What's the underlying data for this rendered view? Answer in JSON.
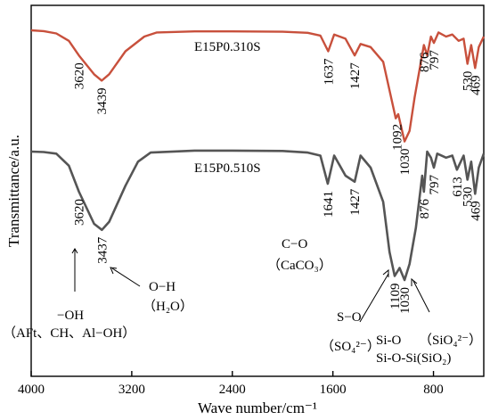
{
  "chart_data": {
    "type": "line",
    "xlabel": "Wave number/cm⁻¹",
    "ylabel": "Transmittance/a.u.",
    "xlim": [
      4000,
      400
    ],
    "x_reversed": true,
    "x_ticks": [
      4000,
      3200,
      2400,
      1600,
      800
    ],
    "grid": false,
    "series": [
      {
        "name": "E15P0.310S",
        "color": "#c8503c",
        "points": [
          [
            4000,
            100
          ],
          [
            3900,
            99.6
          ],
          [
            3800,
            98.5
          ],
          [
            3700,
            95
          ],
          [
            3620,
            88
          ],
          [
            3500,
            79
          ],
          [
            3439,
            76
          ],
          [
            3380,
            79
          ],
          [
            3250,
            90
          ],
          [
            3100,
            97
          ],
          [
            3000,
            99
          ],
          [
            2700,
            99.5
          ],
          [
            2400,
            99.5
          ],
          [
            2000,
            99.3
          ],
          [
            1800,
            98.8
          ],
          [
            1700,
            97.5
          ],
          [
            1637,
            90
          ],
          [
            1590,
            98
          ],
          [
            1500,
            96
          ],
          [
            1427,
            88
          ],
          [
            1380,
            93.5
          ],
          [
            1300,
            92
          ],
          [
            1200,
            85
          ],
          [
            1100,
            58
          ],
          [
            1080,
            60
          ],
          [
            1030,
            47
          ],
          [
            990,
            52
          ],
          [
            950,
            68
          ],
          [
            876,
            93
          ],
          [
            850,
            88
          ],
          [
            820,
            97
          ],
          [
            797,
            94
          ],
          [
            760,
            99
          ],
          [
            700,
            97
          ],
          [
            650,
            98
          ],
          [
            600,
            95
          ],
          [
            560,
            96
          ],
          [
            530,
            84
          ],
          [
            500,
            93
          ],
          [
            469,
            82
          ],
          [
            440,
            92
          ],
          [
            400,
            97
          ]
        ]
      },
      {
        "name": "E15P0.510S",
        "color": "#555555",
        "points": [
          [
            4000,
            100
          ],
          [
            3900,
            99.8
          ],
          [
            3800,
            99
          ],
          [
            3700,
            93
          ],
          [
            3620,
            80
          ],
          [
            3500,
            64
          ],
          [
            3437,
            61
          ],
          [
            3380,
            65
          ],
          [
            3250,
            83
          ],
          [
            3150,
            95
          ],
          [
            3050,
            99.5
          ],
          [
            2700,
            100.5
          ],
          [
            2400,
            100.5
          ],
          [
            2000,
            100.3
          ],
          [
            1800,
            99.5
          ],
          [
            1700,
            98
          ],
          [
            1641,
            84
          ],
          [
            1590,
            98
          ],
          [
            1500,
            88
          ],
          [
            1427,
            85
          ],
          [
            1380,
            98
          ],
          [
            1300,
            92
          ],
          [
            1200,
            75
          ],
          [
            1150,
            50
          ],
          [
            1109,
            38
          ],
          [
            1070,
            42
          ],
          [
            1030,
            36
          ],
          [
            990,
            44
          ],
          [
            940,
            62
          ],
          [
            890,
            88
          ],
          [
            876,
            80
          ],
          [
            850,
            100
          ],
          [
            820,
            97
          ],
          [
            797,
            92
          ],
          [
            770,
            99
          ],
          [
            700,
            97
          ],
          [
            650,
            98
          ],
          [
            613,
            91
          ],
          [
            560,
            98
          ],
          [
            530,
            86
          ],
          [
            500,
            95
          ],
          [
            469,
            79
          ],
          [
            440,
            92
          ],
          [
            400,
            99
          ]
        ]
      }
    ],
    "peak_labels": [
      {
        "text": "3620",
        "series": 0,
        "x": 3620
      },
      {
        "text": "3439",
        "series": 0,
        "x": 3439
      },
      {
        "text": "1637",
        "series": 0,
        "x": 1637
      },
      {
        "text": "1427",
        "series": 0,
        "x": 1427
      },
      {
        "text": "1092",
        "series": 0,
        "x": 1092
      },
      {
        "text": "1030",
        "series": 0,
        "x": 1030
      },
      {
        "text": "876",
        "series": 0,
        "x": 876
      },
      {
        "text": "797",
        "series": 0,
        "x": 797
      },
      {
        "text": "530",
        "series": 0,
        "x": 530
      },
      {
        "text": "469",
        "series": 0,
        "x": 469
      },
      {
        "text": "3620",
        "series": 1,
        "x": 3620
      },
      {
        "text": "3437",
        "series": 1,
        "x": 3437
      },
      {
        "text": "1641",
        "series": 1,
        "x": 1641
      },
      {
        "text": "1427",
        "series": 1,
        "x": 1427
      },
      {
        "text": "1109",
        "series": 1,
        "x": 1109
      },
      {
        "text": "1030",
        "series": 1,
        "x": 1030
      },
      {
        "text": "876",
        "series": 1,
        "x": 876
      },
      {
        "text": "797",
        "series": 1,
        "x": 797
      },
      {
        "text": "613",
        "series": 1,
        "x": 613
      },
      {
        "text": "530",
        "series": 1,
        "x": 530
      },
      {
        "text": "469",
        "series": 1,
        "x": 469
      }
    ],
    "annotations": [
      {
        "text": "−OH"
      },
      {
        "text": "（AFt、CH、Al−OH）"
      },
      {
        "text": "O−H"
      },
      {
        "text": "（H₂O）"
      },
      {
        "text": "C−O"
      },
      {
        "text": "（CaCO₃）"
      },
      {
        "text": "S−O"
      },
      {
        "text": "（SO₄²⁻）"
      },
      {
        "text": "Si-O"
      },
      {
        "text": "Si-O-Si(SiO₂)"
      },
      {
        "text": "（SiO₄²⁻）"
      }
    ]
  }
}
